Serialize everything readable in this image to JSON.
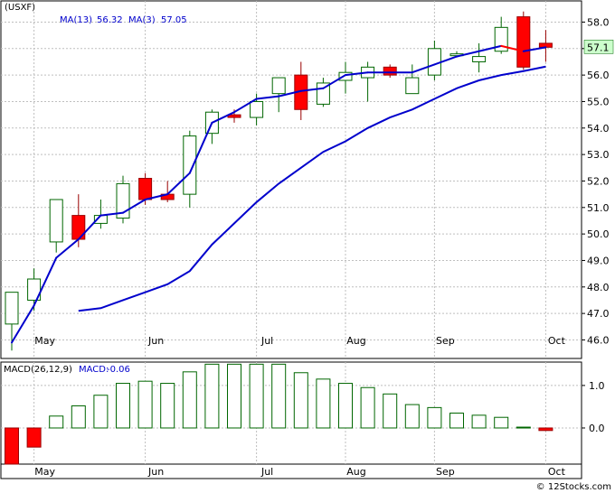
{
  "chart_data": [
    {
      "type": "candlestick",
      "ticker": "(USXF)",
      "x_labels": [
        {
          "label": "May",
          "period": 1
        },
        {
          "label": "Jun",
          "period": 6
        },
        {
          "label": "Jul",
          "period": 11
        },
        {
          "label": "Aug",
          "period": 15
        },
        {
          "label": "Sep",
          "period": 19
        },
        {
          "label": "Oct",
          "period": 24
        }
      ],
      "ylim": [
        45.3,
        58.8
      ],
      "y_ticks": [
        46.0,
        47.0,
        48.0,
        49.0,
        50.0,
        51.0,
        52.0,
        53.0,
        54.0,
        55.0,
        56.0,
        57.0,
        58.0
      ],
      "grid": true,
      "last_price_label": "57.1",
      "candles": [
        {
          "open": 46.6,
          "high": 47.8,
          "low": 45.6,
          "close": 47.8
        },
        {
          "open": 47.5,
          "high": 48.7,
          "low": 47.1,
          "close": 48.3
        },
        {
          "open": 49.7,
          "high": 51.3,
          "low": 49.3,
          "close": 51.3
        },
        {
          "open": 50.7,
          "high": 51.5,
          "low": 49.5,
          "close": 49.8
        },
        {
          "open": 50.4,
          "high": 51.3,
          "low": 50.2,
          "close": 50.7
        },
        {
          "open": 50.6,
          "high": 52.2,
          "low": 50.4,
          "close": 51.9
        },
        {
          "open": 52.1,
          "high": 52.3,
          "low": 51.1,
          "close": 51.3
        },
        {
          "open": 51.5,
          "high": 52.0,
          "low": 51.2,
          "close": 51.3
        },
        {
          "open": 51.5,
          "high": 53.9,
          "low": 51.0,
          "close": 53.7
        },
        {
          "open": 53.8,
          "high": 54.7,
          "low": 53.4,
          "close": 54.6
        },
        {
          "open": 54.5,
          "high": 54.7,
          "low": 54.2,
          "close": 54.4
        },
        {
          "open": 54.4,
          "high": 55.3,
          "low": 54.1,
          "close": 55.0
        },
        {
          "open": 55.3,
          "high": 55.9,
          "low": 54.6,
          "close": 55.9
        },
        {
          "open": 56.0,
          "high": 56.5,
          "low": 54.3,
          "close": 54.7
        },
        {
          "open": 54.9,
          "high": 55.9,
          "low": 54.8,
          "close": 55.7
        },
        {
          "open": 55.8,
          "high": 56.5,
          "low": 55.3,
          "close": 56.1
        },
        {
          "open": 55.9,
          "high": 56.5,
          "low": 55.0,
          "close": 56.3
        },
        {
          "open": 56.3,
          "high": 56.4,
          "low": 55.9,
          "close": 56.0
        },
        {
          "open": 55.3,
          "high": 56.4,
          "low": 55.3,
          "close": 55.9
        },
        {
          "open": 56.0,
          "high": 57.3,
          "low": 55.8,
          "close": 57.0
        },
        {
          "open": 56.8,
          "high": 56.9,
          "low": 56.7,
          "close": 56.8
        },
        {
          "open": 56.5,
          "high": 57.2,
          "low": 56.1,
          "close": 56.7
        },
        {
          "open": 56.9,
          "high": 58.2,
          "low": 56.8,
          "close": 57.8
        },
        {
          "open": 58.2,
          "high": 58.4,
          "low": 56.2,
          "close": 56.3
        },
        {
          "open": 57.2,
          "high": 57.7,
          "low": 56.5,
          "close": 57.05
        }
      ],
      "series": [
        {
          "name": "MA(13)",
          "legend_value": "56.32",
          "color": "#0000cc",
          "values": [
            null,
            null,
            null,
            47.1,
            47.2,
            47.5,
            47.8,
            48.1,
            48.6,
            49.6,
            50.4,
            51.2,
            51.9,
            52.5,
            53.1,
            53.5,
            54.0,
            54.4,
            54.7,
            55.1,
            55.5,
            55.8,
            56.0,
            56.15,
            56.32
          ]
        },
        {
          "name": "MA(3)",
          "legend_value": "57.05",
          "color": "#0000cc",
          "falling_color": "#ff0000",
          "values": [
            45.9,
            47.3,
            49.1,
            49.8,
            50.7,
            50.8,
            51.3,
            51.5,
            52.3,
            54.2,
            54.6,
            55.1,
            55.2,
            55.4,
            55.5,
            56.0,
            56.1,
            56.1,
            56.1,
            56.4,
            56.7,
            56.9,
            57.1,
            56.9,
            57.05
          ]
        }
      ]
    },
    {
      "type": "bar",
      "title": "MACD(26,12,9)",
      "legend_label": "MACD:",
      "legend_value": "-0.06",
      "ylim": [
        -0.85,
        1.55
      ],
      "y_ticks": [
        0.0,
        1.0
      ],
      "grid": true,
      "values": [
        -0.85,
        -0.45,
        0.28,
        0.52,
        0.77,
        1.05,
        1.1,
        1.05,
        1.32,
        1.5,
        1.5,
        1.5,
        1.5,
        1.3,
        1.15,
        1.05,
        0.95,
        0.8,
        0.55,
        0.48,
        0.35,
        0.3,
        0.25,
        0.02,
        -0.06
      ],
      "x_labels": [
        {
          "label": "May",
          "period": 1
        },
        {
          "label": "Jun",
          "period": 6
        },
        {
          "label": "Jul",
          "period": 11
        },
        {
          "label": "Aug",
          "period": 15
        },
        {
          "label": "Sep",
          "period": 19
        },
        {
          "label": "Oct",
          "period": 24
        }
      ]
    }
  ],
  "colors": {
    "up_fill": "#ffffff",
    "up_stroke": "#006600",
    "down_fill": "#ff0000",
    "down_stroke": "#990000",
    "price_label_bg": "#ccffcc",
    "grid": "#bfbfbf",
    "ma_color": "#0000cc",
    "macd_pos_stroke": "#006600",
    "macd_neg_fill": "#ff0000"
  },
  "watermark": "© 12Stocks.com"
}
